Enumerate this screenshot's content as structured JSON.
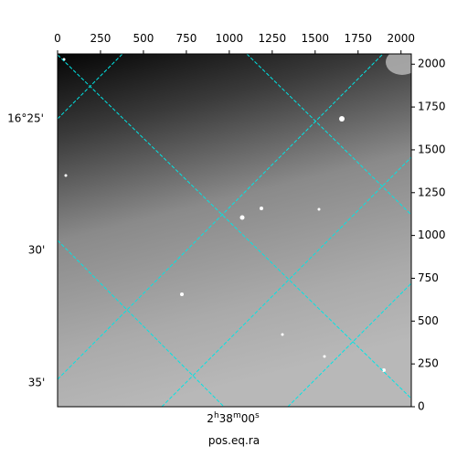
{
  "chart_data": {
    "type": "image",
    "xlabel": "pos.eq.ra",
    "xlim": [
      0,
      2060
    ],
    "ylim": [
      0,
      2060
    ],
    "xticks": [
      0,
      250,
      500,
      750,
      1000,
      1250,
      1500,
      1750,
      2000
    ],
    "yticks": [
      0,
      250,
      500,
      750,
      1000,
      1250,
      1500,
      1750,
      2000
    ],
    "dec_labels": [
      "16°25'",
      "30'",
      "35'"
    ],
    "ra_label": [
      "2",
      "h",
      "38",
      "m",
      "00",
      "s"
    ],
    "grid_color": "#00e5e5"
  }
}
